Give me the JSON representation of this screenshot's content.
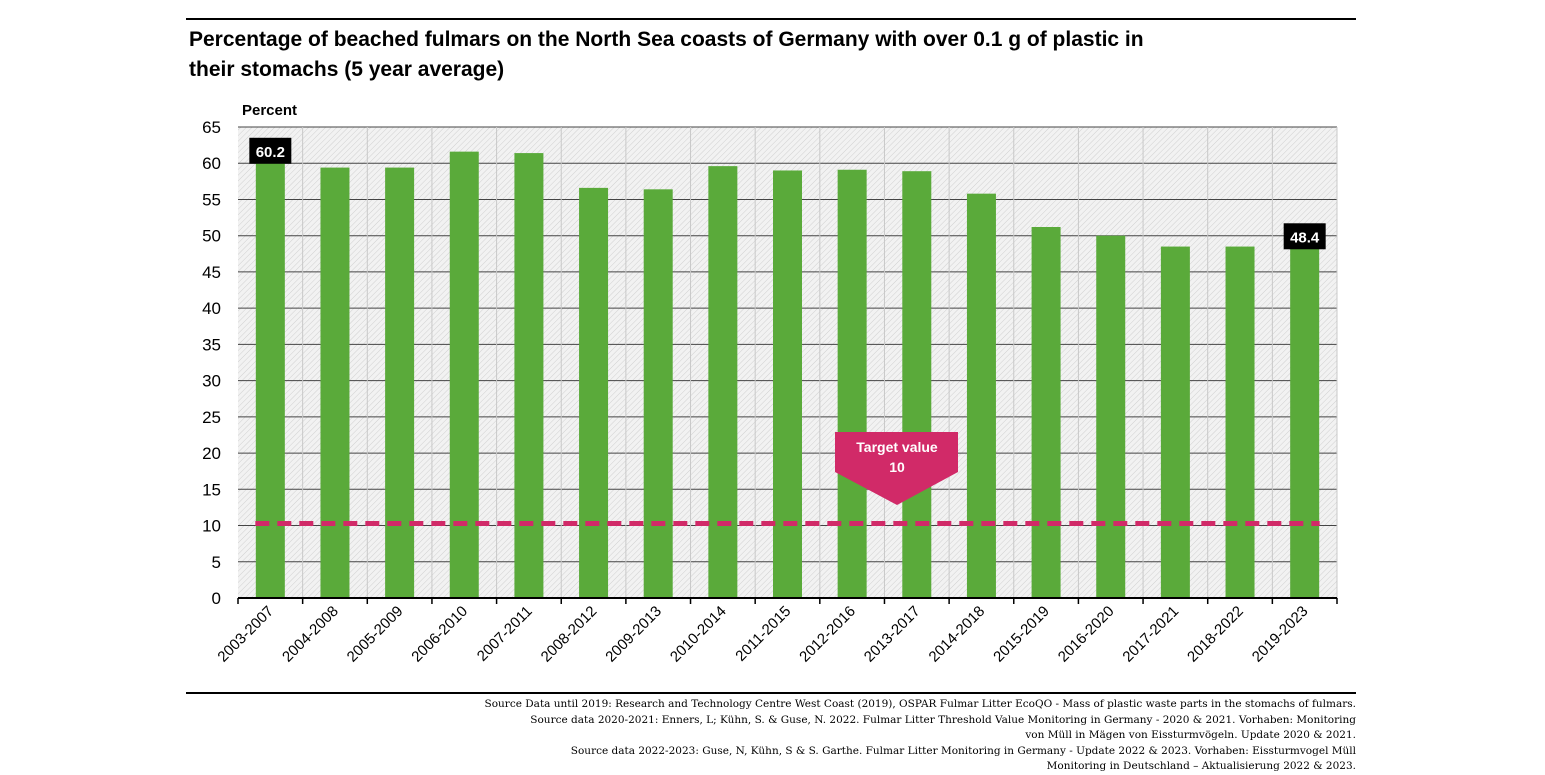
{
  "title_line1": "Percentage of beached fulmars on the North Sea coasts of Germany with over 0.1 g of plastic in",
  "title_line2": "their stomachs (5 year average)",
  "colors": {
    "bar": "#5aaa3a",
    "target": "#d12a68",
    "label_bg": "#000000",
    "grid": "#333333"
  },
  "chart_data": {
    "type": "bar",
    "title": "Percentage of beached fulmars on the North Sea coasts of Germany with over 0.1 g of plastic in their stomachs (5 year average)",
    "ylabel": "Percent",
    "xlabel": "",
    "ylim": [
      0,
      65
    ],
    "yticks": [
      0,
      5,
      10,
      15,
      20,
      25,
      30,
      35,
      40,
      45,
      50,
      55,
      60,
      65
    ],
    "categories": [
      "2003-2007",
      "2004-2008",
      "2005-2009",
      "2006-2010",
      "2007-2011",
      "2008-2012",
      "2009-2013",
      "2010-2014",
      "2011-2015",
      "2012-2016",
      "2013-2017",
      "2014-2018",
      "2015-2019",
      "2016-2020",
      "2017-2021",
      "2018-2022",
      "2019-2023"
    ],
    "values": [
      60.2,
      59.4,
      59.4,
      61.6,
      61.4,
      56.6,
      56.4,
      59.6,
      59.0,
      59.1,
      58.9,
      55.8,
      51.2,
      50.0,
      48.5,
      48.5,
      48.4
    ],
    "value_labels": [
      {
        "index": 0,
        "text": "60.2"
      },
      {
        "index": 16,
        "text": "48.4"
      }
    ],
    "target": {
      "value": 10,
      "label_line1": "Target value",
      "label_line2": "10"
    }
  },
  "sources": [
    "Source Data until 2019: Research and Technology Centre West Coast (2019), OSPAR Fulmar Litter EcoQO - Mass of plastic waste parts in the stomachs of fulmars.",
    "Source data 2020-2021: Enners, L; Kühn, S. & Guse, N. 2022. Fulmar Litter Threshold Value Monitoring in Germany - 2020 & 2021. Vorhaben: Monitoring",
    "von Müll in Mägen von Eissturmvögeln. Update 2020 & 2021.",
    "Source data 2022-2023: Guse, N, Kühn, S & S. Garthe. Fulmar Litter Monitoring in Germany - Update 2022 & 2023. Vorhaben: Eissturmvogel Müll",
    "Monitoring in Deutschland – Aktualisierung 2022 & 2023."
  ]
}
